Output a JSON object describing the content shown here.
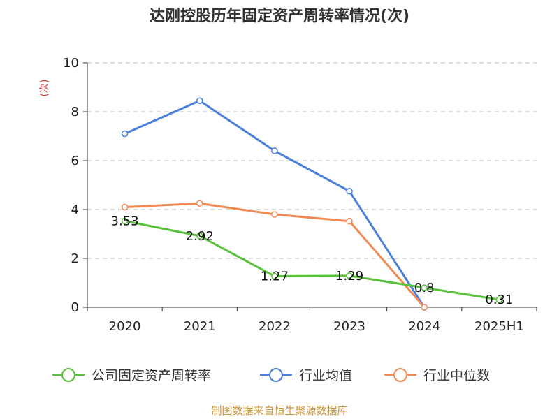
{
  "chart_data": {
    "type": "line",
    "title": "达刚控股历年固定资产周转率情况(次)",
    "ylabel": "(次)",
    "xlabel": "",
    "ylim": [
      0,
      10
    ],
    "yticks": [
      0,
      2,
      4,
      6,
      8,
      10
    ],
    "categories": [
      "2020",
      "2021",
      "2022",
      "2023",
      "2024",
      "2025H1"
    ],
    "grid": true,
    "legend_position": "bottom",
    "series": [
      {
        "name": "公司固定资产周转率",
        "color": "#5ac13a",
        "values": [
          3.53,
          2.92,
          1.27,
          1.29,
          0.8,
          0.31
        ],
        "labels": [
          "3.53",
          "2.92",
          "1.27",
          "1.29",
          "0.8",
          "0.31"
        ]
      },
      {
        "name": "行业均值",
        "color": "#4a7fdb",
        "values": [
          7.1,
          8.45,
          6.4,
          4.75,
          0.0,
          null
        ]
      },
      {
        "name": "行业中位数",
        "color": "#f28a55",
        "values": [
          4.1,
          4.25,
          3.8,
          3.52,
          0.0,
          null
        ]
      }
    ]
  },
  "source": {
    "text": "制图数据来自恒生聚源数据库",
    "color": "#c8963c"
  },
  "ylabel_color": "#e03030"
}
